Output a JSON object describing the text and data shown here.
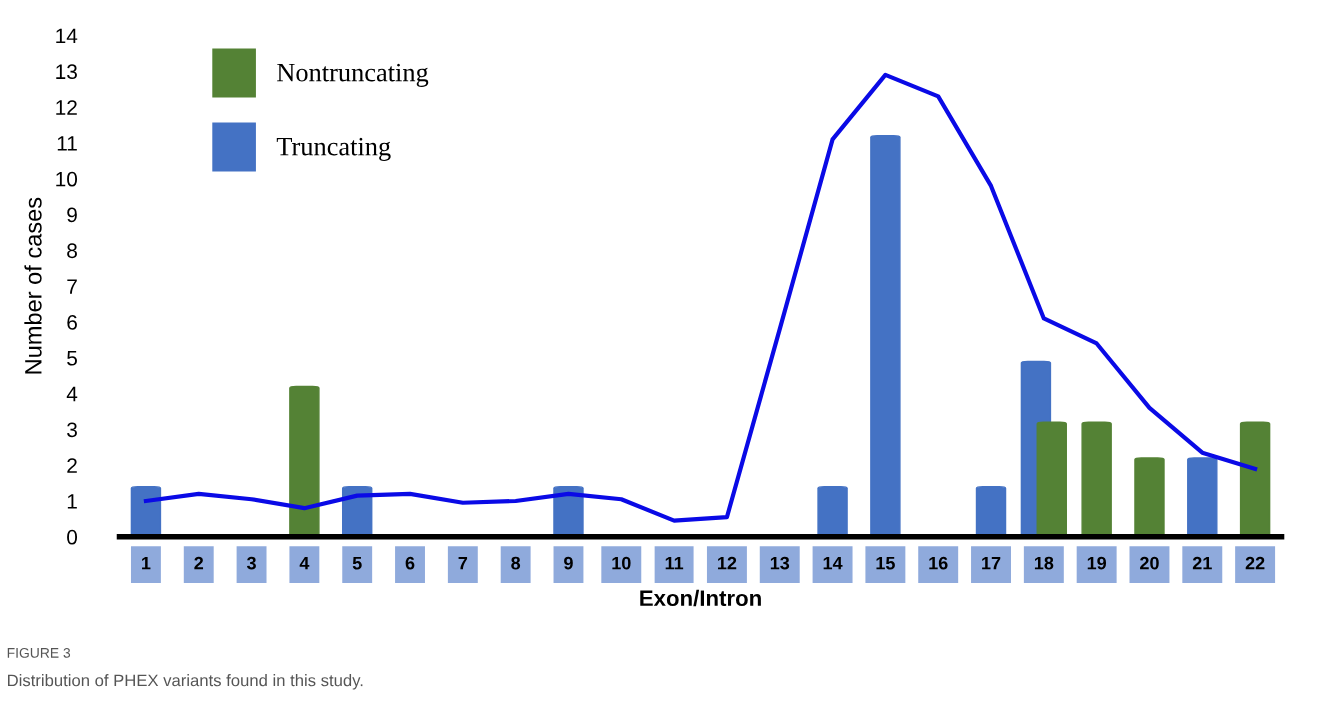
{
  "chart_data": {
    "type": "bar",
    "xlabel": "Exon/Intron",
    "ylabel": "Number of cases",
    "categories": [
      "1",
      "2",
      "3",
      "4",
      "5",
      "6",
      "7",
      "8",
      "9",
      "10",
      "11",
      "12",
      "13",
      "14",
      "15",
      "16",
      "17",
      "18",
      "19",
      "20",
      "21",
      "22"
    ],
    "series": [
      {
        "name": "Nontruncating",
        "color": "#548235",
        "values": [
          null,
          null,
          null,
          4.2,
          null,
          null,
          null,
          null,
          null,
          null,
          null,
          null,
          null,
          null,
          null,
          null,
          null,
          3.2,
          3.2,
          2.2,
          null,
          3.2
        ]
      },
      {
        "name": "Truncating",
        "color": "#4472c4",
        "values": [
          1.4,
          null,
          null,
          null,
          1.4,
          null,
          null,
          null,
          1.4,
          null,
          null,
          null,
          null,
          1.4,
          11.2,
          null,
          1.4,
          4.9,
          null,
          null,
          2.2,
          null
        ]
      },
      {
        "type": "line",
        "color": "#0a0ae6",
        "values": [
          1.0,
          1.2,
          1.05,
          0.8,
          1.15,
          1.2,
          0.95,
          1.0,
          1.2,
          1.05,
          0.45,
          0.55,
          5.8,
          11.1,
          12.9,
          12.3,
          9.8,
          6.1,
          5.4,
          3.6,
          2.35,
          1.9
        ]
      }
    ],
    "ylim": [
      0,
      14
    ],
    "yticks": [
      0,
      1,
      2,
      3,
      4,
      5,
      6,
      7,
      8,
      9,
      10,
      11,
      12,
      13,
      14
    ],
    "grid": false,
    "legend": "top left",
    "annotations": [
      "FIGURE 3",
      "Distribution of PHEX variants found in this study."
    ]
  }
}
